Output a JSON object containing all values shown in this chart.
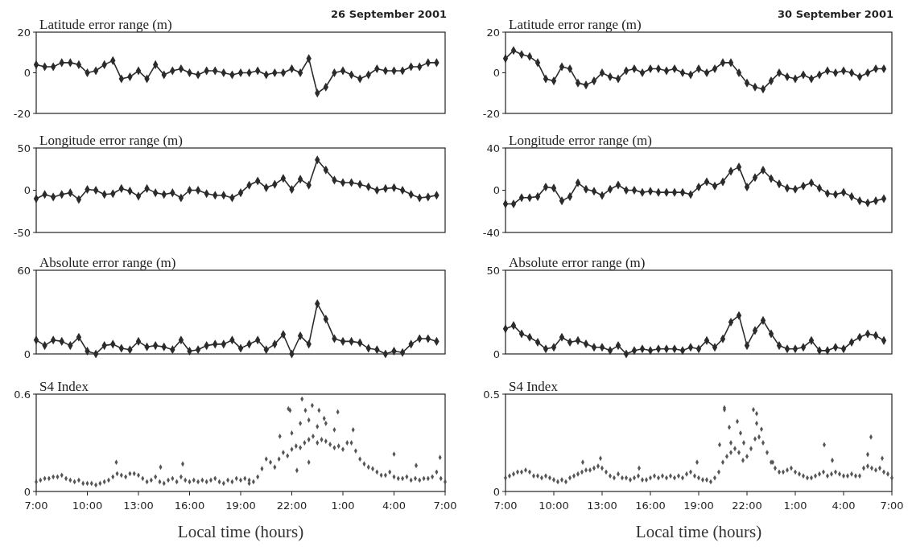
{
  "chart_data": [
    {
      "type": "line",
      "title": "Latitude error range (m)",
      "annotations": [
        "26 September 2001"
      ],
      "xlim": [
        "2001-09-26T07:00",
        "2001-09-27T07:00"
      ],
      "ylim": [
        -20,
        20
      ],
      "yticks": [
        -20,
        0,
        20
      ],
      "tick_labels": "y",
      "marker": "diamond",
      "line_style": "solid",
      "grid": false,
      "series": [
        {
          "color": "#2b2b2b",
          "x": [
            "2001-09-26T07:00",
            "2001-09-26T07:30",
            "2001-09-26T08:00",
            "2001-09-26T08:30",
            "2001-09-26T09:00",
            "2001-09-26T09:30",
            "2001-09-26T10:00",
            "2001-09-26T10:30",
            "2001-09-26T11:00",
            "2001-09-26T11:30",
            "2001-09-26T12:00",
            "2001-09-26T12:30",
            "2001-09-26T13:00",
            "2001-09-26T13:30",
            "2001-09-26T14:00",
            "2001-09-26T14:30",
            "2001-09-26T15:00",
            "2001-09-26T15:30",
            "2001-09-26T16:00",
            "2001-09-26T16:30",
            "2001-09-26T17:00",
            "2001-09-26T17:30",
            "2001-09-26T18:00",
            "2001-09-26T18:30",
            "2001-09-26T19:00",
            "2001-09-26T19:30",
            "2001-09-26T20:00",
            "2001-09-26T20:30",
            "2001-09-26T21:00",
            "2001-09-26T21:30",
            "2001-09-26T22:00",
            "2001-09-26T22:30",
            "2001-09-26T23:00",
            "2001-09-26T23:30",
            "2001-09-27T00:00",
            "2001-09-27T00:30",
            "2001-09-27T01:00",
            "2001-09-27T01:30",
            "2001-09-27T02:00",
            "2001-09-27T02:30",
            "2001-09-27T03:00",
            "2001-09-27T03:30",
            "2001-09-27T04:00",
            "2001-09-27T04:30",
            "2001-09-27T05:00",
            "2001-09-27T05:30",
            "2001-09-27T06:00",
            "2001-09-27T06:30"
          ],
          "values": [
            4,
            3,
            3,
            5,
            5,
            4,
            0,
            1,
            4,
            6,
            -3,
            -2,
            1,
            -3,
            4,
            -1,
            1,
            2,
            0,
            -1,
            1,
            1,
            0,
            -1,
            0,
            0,
            1,
            -1,
            0,
            0,
            2,
            0,
            7,
            -10,
            -7,
            0,
            1,
            -1,
            -3,
            -1,
            2,
            1,
            1,
            1,
            3,
            3,
            5,
            5
          ]
        }
      ]
    },
    {
      "type": "line",
      "title": "Latitude error range (m)",
      "annotations": [
        "30 September 2001"
      ],
      "xlim": [
        "2001-09-30T07:00",
        "2001-10-01T07:00"
      ],
      "ylim": [
        -20,
        20
      ],
      "yticks": [
        -20,
        0,
        20
      ],
      "tick_labels": "y",
      "marker": "diamond",
      "line_style": "solid",
      "grid": false,
      "series": [
        {
          "color": "#2b2b2b",
          "x": [
            "2001-09-30T07:00",
            "2001-09-30T07:30",
            "2001-09-30T08:00",
            "2001-09-30T08:30",
            "2001-09-30T09:00",
            "2001-09-30T09:30",
            "2001-09-30T10:00",
            "2001-09-30T10:30",
            "2001-09-30T11:00",
            "2001-09-30T11:30",
            "2001-09-30T12:00",
            "2001-09-30T12:30",
            "2001-09-30T13:00",
            "2001-09-30T13:30",
            "2001-09-30T14:00",
            "2001-09-30T14:30",
            "2001-09-30T15:00",
            "2001-09-30T15:30",
            "2001-09-30T16:00",
            "2001-09-30T16:30",
            "2001-09-30T17:00",
            "2001-09-30T17:30",
            "2001-09-30T18:00",
            "2001-09-30T18:30",
            "2001-09-30T19:00",
            "2001-09-30T19:30",
            "2001-09-30T20:00",
            "2001-09-30T20:30",
            "2001-09-30T21:00",
            "2001-09-30T21:30",
            "2001-09-30T22:00",
            "2001-09-30T22:30",
            "2001-09-30T23:00",
            "2001-09-30T23:30",
            "2001-10-01T00:00",
            "2001-10-01T00:30",
            "2001-10-01T01:00",
            "2001-10-01T01:30",
            "2001-10-01T02:00",
            "2001-10-01T02:30",
            "2001-10-01T03:00",
            "2001-10-01T03:30",
            "2001-10-01T04:00",
            "2001-10-01T04:30",
            "2001-10-01T05:00",
            "2001-10-01T05:30",
            "2001-10-01T06:00",
            "2001-10-01T06:30"
          ],
          "values": [
            7,
            11,
            9,
            8,
            5,
            -3,
            -4,
            3,
            2,
            -5,
            -6,
            -4,
            0,
            -2,
            -3,
            1,
            2,
            0,
            2,
            2,
            1,
            2,
            0,
            -1,
            2,
            0,
            2,
            5,
            5,
            0,
            -5,
            -7,
            -8,
            -4,
            0,
            -2,
            -3,
            -1,
            -3,
            -1,
            1,
            0,
            1,
            0,
            -2,
            0,
            2,
            2
          ]
        }
      ]
    },
    {
      "type": "line",
      "title": "Longitude error range (m)",
      "xlim": [
        "2001-09-26T07:00",
        "2001-09-27T07:00"
      ],
      "ylim": [
        -50,
        50
      ],
      "yticks": [
        -50,
        0,
        50
      ],
      "tick_labels": "y",
      "marker": "diamond",
      "line_style": "solid",
      "grid": false,
      "series": [
        {
          "color": "#2b2b2b",
          "x": [
            "2001-09-26T07:00",
            "2001-09-26T07:30",
            "2001-09-26T08:00",
            "2001-09-26T08:30",
            "2001-09-26T09:00",
            "2001-09-26T09:30",
            "2001-09-26T10:00",
            "2001-09-26T10:30",
            "2001-09-26T11:00",
            "2001-09-26T11:30",
            "2001-09-26T12:00",
            "2001-09-26T12:30",
            "2001-09-26T13:00",
            "2001-09-26T13:30",
            "2001-09-26T14:00",
            "2001-09-26T14:30",
            "2001-09-26T15:00",
            "2001-09-26T15:30",
            "2001-09-26T16:00",
            "2001-09-26T16:30",
            "2001-09-26T17:00",
            "2001-09-26T17:30",
            "2001-09-26T18:00",
            "2001-09-26T18:30",
            "2001-09-26T19:00",
            "2001-09-26T19:30",
            "2001-09-26T20:00",
            "2001-09-26T20:30",
            "2001-09-26T21:00",
            "2001-09-26T21:30",
            "2001-09-26T22:00",
            "2001-09-26T22:30",
            "2001-09-26T23:00",
            "2001-09-26T23:30",
            "2001-09-27T00:00",
            "2001-09-27T00:30",
            "2001-09-27T01:00",
            "2001-09-27T01:30",
            "2001-09-27T02:00",
            "2001-09-27T02:30",
            "2001-09-27T03:00",
            "2001-09-27T03:30",
            "2001-09-27T04:00",
            "2001-09-27T04:30",
            "2001-09-27T05:00",
            "2001-09-27T05:30",
            "2001-09-27T06:00",
            "2001-09-27T06:30"
          ],
          "values": [
            -10,
            -5,
            -8,
            -5,
            -3,
            -11,
            1,
            0,
            -5,
            -4,
            2,
            -1,
            -7,
            2,
            -3,
            -5,
            -3,
            -9,
            0,
            0,
            -4,
            -6,
            -6,
            -9,
            -3,
            6,
            11,
            3,
            7,
            14,
            1,
            13,
            6,
            36,
            24,
            12,
            9,
            9,
            7,
            4,
            0,
            2,
            3,
            0,
            -5,
            -9,
            -8,
            -6
          ]
        }
      ]
    },
    {
      "type": "line",
      "title": "Longitude error range (m)",
      "xlim": [
        "2001-09-30T07:00",
        "2001-10-01T07:00"
      ],
      "ylim": [
        -40,
        40
      ],
      "yticks": [
        -40,
        0,
        40
      ],
      "tick_labels": "y",
      "marker": "diamond",
      "line_style": "solid",
      "grid": false,
      "series": [
        {
          "color": "#2b2b2b",
          "x": [
            "2001-09-30T07:00",
            "2001-09-30T07:30",
            "2001-09-30T08:00",
            "2001-09-30T08:30",
            "2001-09-30T09:00",
            "2001-09-30T09:30",
            "2001-09-30T10:00",
            "2001-09-30T10:30",
            "2001-09-30T11:00",
            "2001-09-30T11:30",
            "2001-09-30T12:00",
            "2001-09-30T12:30",
            "2001-09-30T13:00",
            "2001-09-30T13:30",
            "2001-09-30T14:00",
            "2001-09-30T14:30",
            "2001-09-30T15:00",
            "2001-09-30T15:30",
            "2001-09-30T16:00",
            "2001-09-30T16:30",
            "2001-09-30T17:00",
            "2001-09-30T17:30",
            "2001-09-30T18:00",
            "2001-09-30T18:30",
            "2001-09-30T19:00",
            "2001-09-30T19:30",
            "2001-09-30T20:00",
            "2001-09-30T20:30",
            "2001-09-30T21:00",
            "2001-09-30T21:30",
            "2001-09-30T22:00",
            "2001-09-30T22:30",
            "2001-09-30T23:00",
            "2001-09-30T23:30",
            "2001-10-01T00:00",
            "2001-10-01T00:30",
            "2001-10-01T01:00",
            "2001-10-01T01:30",
            "2001-10-01T02:00",
            "2001-10-01T02:30",
            "2001-10-01T03:00",
            "2001-10-01T03:30",
            "2001-10-01T04:00",
            "2001-10-01T04:30",
            "2001-10-01T05:00",
            "2001-10-01T05:30",
            "2001-10-01T06:00",
            "2001-10-01T06:30"
          ],
          "values": [
            -13,
            -13,
            -7,
            -7,
            -6,
            3,
            2,
            -10,
            -6,
            7,
            1,
            -1,
            -5,
            1,
            5,
            0,
            0,
            -2,
            -1,
            -2,
            -2,
            -2,
            -2,
            -4,
            3,
            8,
            4,
            8,
            18,
            22,
            3,
            12,
            19,
            11,
            6,
            2,
            1,
            4,
            7,
            2,
            -3,
            -4,
            -2,
            -6,
            -10,
            -12,
            -10,
            -8
          ]
        }
      ]
    },
    {
      "type": "line",
      "title": "Absolute error range (m)",
      "xlim": [
        "2001-09-26T07:00",
        "2001-09-27T07:00"
      ],
      "ylim": [
        0,
        60
      ],
      "yticks": [
        0,
        60
      ],
      "tick_labels": "y",
      "marker": "diamond",
      "line_style": "solid",
      "grid": false,
      "series": [
        {
          "color": "#2b2b2b",
          "x": [
            "2001-09-26T07:00",
            "2001-09-26T07:30",
            "2001-09-26T08:00",
            "2001-09-26T08:30",
            "2001-09-26T09:00",
            "2001-09-26T09:30",
            "2001-09-26T10:00",
            "2001-09-26T10:30",
            "2001-09-26T11:00",
            "2001-09-26T11:30",
            "2001-09-26T12:00",
            "2001-09-26T12:30",
            "2001-09-26T13:00",
            "2001-09-26T13:30",
            "2001-09-26T14:00",
            "2001-09-26T14:30",
            "2001-09-26T15:00",
            "2001-09-26T15:30",
            "2001-09-26T16:00",
            "2001-09-26T16:30",
            "2001-09-26T17:00",
            "2001-09-26T17:30",
            "2001-09-26T18:00",
            "2001-09-26T18:30",
            "2001-09-26T19:00",
            "2001-09-26T19:30",
            "2001-09-26T20:00",
            "2001-09-26T20:30",
            "2001-09-26T21:00",
            "2001-09-26T21:30",
            "2001-09-26T22:00",
            "2001-09-26T22:30",
            "2001-09-26T23:00",
            "2001-09-26T23:30",
            "2001-09-27T00:00",
            "2001-09-27T00:30",
            "2001-09-27T01:00",
            "2001-09-27T01:30",
            "2001-09-27T02:00",
            "2001-09-27T02:30",
            "2001-09-27T03:00",
            "2001-09-27T03:30",
            "2001-09-27T04:00",
            "2001-09-27T04:30",
            "2001-09-27T05:00",
            "2001-09-27T05:30",
            "2001-09-27T06:00",
            "2001-09-27T06:30"
          ],
          "values": [
            10,
            6,
            10,
            9,
            6,
            12,
            2,
            0,
            6,
            7,
            4,
            3,
            9,
            5,
            6,
            5,
            3,
            10,
            2,
            3,
            6,
            7,
            7,
            10,
            4,
            7,
            10,
            3,
            7,
            14,
            0,
            13,
            7,
            36,
            25,
            11,
            9,
            9,
            8,
            4,
            3,
            0,
            2,
            1,
            7,
            11,
            11,
            9
          ]
        }
      ]
    },
    {
      "type": "line",
      "title": "Absolute error range (m)",
      "xlim": [
        "2001-09-30T07:00",
        "2001-10-01T07:00"
      ],
      "ylim": [
        0,
        50
      ],
      "yticks": [
        0,
        50
      ],
      "tick_labels": "y",
      "marker": "diamond",
      "line_style": "solid",
      "grid": false,
      "series": [
        {
          "color": "#2b2b2b",
          "x": [
            "2001-09-30T07:00",
            "2001-09-30T07:30",
            "2001-09-30T08:00",
            "2001-09-30T08:30",
            "2001-09-30T09:00",
            "2001-09-30T09:30",
            "2001-09-30T10:00",
            "2001-09-30T10:30",
            "2001-09-30T11:00",
            "2001-09-30T11:30",
            "2001-09-30T12:00",
            "2001-09-30T12:30",
            "2001-09-30T13:00",
            "2001-09-30T13:30",
            "2001-09-30T14:00",
            "2001-09-30T14:30",
            "2001-09-30T15:00",
            "2001-09-30T15:30",
            "2001-09-30T16:00",
            "2001-09-30T16:30",
            "2001-09-30T17:00",
            "2001-09-30T17:30",
            "2001-09-30T18:00",
            "2001-09-30T18:30",
            "2001-09-30T19:00",
            "2001-09-30T19:30",
            "2001-09-30T20:00",
            "2001-09-30T20:30",
            "2001-09-30T21:00",
            "2001-09-30T21:30",
            "2001-09-30T22:00",
            "2001-09-30T22:30",
            "2001-09-30T23:00",
            "2001-09-30T23:30",
            "2001-10-01T00:00",
            "2001-10-01T00:30",
            "2001-10-01T01:00",
            "2001-10-01T01:30",
            "2001-10-01T02:00",
            "2001-10-01T02:30",
            "2001-10-01T03:00",
            "2001-10-01T03:30",
            "2001-10-01T04:00",
            "2001-10-01T04:30",
            "2001-10-01T05:00",
            "2001-10-01T05:30",
            "2001-10-01T06:00",
            "2001-10-01T06:30"
          ],
          "values": [
            15,
            17,
            12,
            10,
            7,
            3,
            4,
            10,
            7,
            8,
            6,
            4,
            4,
            2,
            5,
            0,
            2,
            3,
            2,
            3,
            3,
            3,
            2,
            4,
            3,
            8,
            4,
            9,
            19,
            23,
            5,
            14,
            20,
            12,
            5,
            3,
            3,
            4,
            8,
            2,
            2,
            4,
            3,
            7,
            10,
            12,
            11,
            8
          ]
        }
      ]
    },
    {
      "type": "scatter",
      "title": "S4 Index",
      "xlabel": "Local time (hours)",
      "xlim": [
        "2001-09-26T07:00",
        "2001-09-27T07:00"
      ],
      "xticks": [
        {
          "value": "2001-09-26T07:00",
          "label": "7:00"
        },
        {
          "value": "2001-09-26T10:00",
          "label": "10:00"
        },
        {
          "value": "2001-09-26T13:00",
          "label": "13:00"
        },
        {
          "value": "2001-09-26T16:00",
          "label": "16:00"
        },
        {
          "value": "2001-09-26T19:00",
          "label": "19:00"
        },
        {
          "value": "2001-09-26T22:00",
          "label": "22:00"
        },
        {
          "value": "2001-09-27T01:00",
          "label": "1:00"
        },
        {
          "value": "2001-09-27T04:00",
          "label": "4:00"
        },
        {
          "value": "2001-09-27T07:00",
          "label": "7:00"
        }
      ],
      "ylim": [
        0,
        0.6
      ],
      "yticks": [
        0,
        0.6
      ],
      "marker": "diamond",
      "grid": false,
      "series": [
        {
          "color": "#555555",
          "x": [
            "2001-09-26T07:00",
            "2001-09-26T07:15",
            "2001-09-26T07:30",
            "2001-09-26T07:45",
            "2001-09-26T08:00",
            "2001-09-26T08:15",
            "2001-09-26T08:30",
            "2001-09-26T08:45",
            "2001-09-26T09:00",
            "2001-09-26T09:15",
            "2001-09-26T09:30",
            "2001-09-26T09:45",
            "2001-09-26T10:00",
            "2001-09-26T10:15",
            "2001-09-26T10:30",
            "2001-09-26T10:45",
            "2001-09-26T11:00",
            "2001-09-26T11:15",
            "2001-09-26T11:30",
            "2001-09-26T11:45",
            "2001-09-26T12:00",
            "2001-09-26T12:15",
            "2001-09-26T12:30",
            "2001-09-26T12:45",
            "2001-09-26T13:00",
            "2001-09-26T13:15",
            "2001-09-26T13:30",
            "2001-09-26T13:45",
            "2001-09-26T14:00",
            "2001-09-26T14:15",
            "2001-09-26T14:30",
            "2001-09-26T14:45",
            "2001-09-26T15:00",
            "2001-09-26T15:15",
            "2001-09-26T15:30",
            "2001-09-26T15:45",
            "2001-09-26T16:00",
            "2001-09-26T16:15",
            "2001-09-26T16:30",
            "2001-09-26T16:45",
            "2001-09-26T17:00",
            "2001-09-26T17:15",
            "2001-09-26T17:30",
            "2001-09-26T17:45",
            "2001-09-26T18:00",
            "2001-09-26T18:15",
            "2001-09-26T18:30",
            "2001-09-26T18:45",
            "2001-09-26T19:00",
            "2001-09-26T19:15",
            "2001-09-26T19:30",
            "2001-09-26T19:45",
            "2001-09-26T20:00",
            "2001-09-26T20:15",
            "2001-09-26T20:30",
            "2001-09-26T20:45",
            "2001-09-26T21:00",
            "2001-09-26T21:15",
            "2001-09-26T21:30",
            "2001-09-26T21:45",
            "2001-09-26T22:00",
            "2001-09-26T22:15",
            "2001-09-26T22:30",
            "2001-09-26T22:45",
            "2001-09-26T23:00",
            "2001-09-26T23:15",
            "2001-09-26T23:30",
            "2001-09-26T23:45",
            "2001-09-27T00:00",
            "2001-09-27T00:15",
            "2001-09-27T00:30",
            "2001-09-27T00:45",
            "2001-09-27T01:00",
            "2001-09-27T01:15",
            "2001-09-27T01:30",
            "2001-09-27T01:45",
            "2001-09-27T02:00",
            "2001-09-27T02:15",
            "2001-09-27T02:30",
            "2001-09-27T02:45",
            "2001-09-27T03:00",
            "2001-09-27T03:15",
            "2001-09-27T03:30",
            "2001-09-27T03:45",
            "2001-09-27T04:00",
            "2001-09-27T04:15",
            "2001-09-27T04:30",
            "2001-09-27T04:45",
            "2001-09-27T05:00",
            "2001-09-27T05:15",
            "2001-09-27T05:30",
            "2001-09-27T05:45",
            "2001-09-27T06:00",
            "2001-09-27T06:15",
            "2001-09-27T06:30",
            "2001-09-27T06:45",
            "2001-09-27T07:00",
            "2001-09-26T11:42",
            "2001-09-26T14:18",
            "2001-09-26T15:36",
            "2001-09-26T19:30",
            "2001-09-26T21:48",
            "2001-09-26T21:54",
            "2001-09-26T22:36",
            "2001-09-26T22:48",
            "2001-09-26T23:12",
            "2001-09-26T23:36",
            "2001-09-27T00:42",
            "2001-09-26T22:30",
            "2001-09-26T23:00",
            "2001-09-26T23:54",
            "2001-09-26T22:18",
            "2001-09-26T23:00",
            "2001-09-27T00:30",
            "2001-09-27T01:36",
            "2001-09-27T04:00",
            "2001-09-27T05:18",
            "2001-09-27T06:42",
            "2001-09-26T21:18",
            "2001-09-26T22:00",
            "2001-09-26T23:30",
            "2001-09-27T00:00"
          ],
          "values": [
            0.06,
            0.07,
            0.08,
            0.08,
            0.09,
            0.09,
            0.1,
            0.08,
            0.07,
            0.06,
            0.07,
            0.05,
            0.05,
            0.05,
            0.04,
            0.05,
            0.06,
            0.07,
            0.09,
            0.11,
            0.1,
            0.09,
            0.11,
            0.11,
            0.1,
            0.08,
            0.06,
            0.07,
            0.09,
            0.06,
            0.05,
            0.07,
            0.08,
            0.06,
            0.09,
            0.07,
            0.06,
            0.07,
            0.06,
            0.07,
            0.06,
            0.07,
            0.08,
            0.06,
            0.05,
            0.07,
            0.06,
            0.08,
            0.07,
            0.08,
            0.07,
            0.06,
            0.09,
            0.14,
            0.2,
            0.18,
            0.15,
            0.2,
            0.24,
            0.22,
            0.26,
            0.28,
            0.27,
            0.3,
            0.32,
            0.34,
            0.3,
            0.32,
            0.31,
            0.29,
            0.27,
            0.28,
            0.26,
            0.3,
            0.3,
            0.25,
            0.2,
            0.17,
            0.15,
            0.14,
            0.12,
            0.1,
            0.1,
            0.12,
            0.09,
            0.08,
            0.08,
            0.09,
            0.07,
            0.08,
            0.07,
            0.08,
            0.08,
            0.09,
            0.12,
            0.08,
            0.06,
            0.18,
            0.15,
            0.17,
            0.05,
            0.51,
            0.5,
            0.57,
            0.5,
            0.53,
            0.5,
            0.49,
            0.42,
            0.44,
            0.45,
            0.13,
            0.18,
            0.38,
            0.38,
            0.23,
            0.16,
            0.21,
            0.34,
            0.36,
            0.4,
            0.42
          ]
        }
      ]
    },
    {
      "type": "scatter",
      "title": "S4 Index",
      "xlabel": "Local time (hours)",
      "xlim": [
        "2001-09-30T07:00",
        "2001-10-01T07:00"
      ],
      "xticks": [
        {
          "value": "2001-09-30T07:00",
          "label": "7:00"
        },
        {
          "value": "2001-09-30T10:00",
          "label": "10:00"
        },
        {
          "value": "2001-09-30T13:00",
          "label": "13:00"
        },
        {
          "value": "2001-09-30T16:00",
          "label": "16:00"
        },
        {
          "value": "2001-09-30T19:00",
          "label": "19:00"
        },
        {
          "value": "2001-09-30T22:00",
          "label": "22:00"
        },
        {
          "value": "2001-10-01T01:00",
          "label": "1:00"
        },
        {
          "value": "2001-10-01T04:00",
          "label": "4:00"
        },
        {
          "value": "2001-10-01T07:00",
          "label": "7:00"
        }
      ],
      "ylim": [
        0,
        0.5
      ],
      "yticks": [
        0,
        0.5
      ],
      "marker": "diamond",
      "grid": false,
      "series": [
        {
          "color": "#555555",
          "x": [
            "2001-09-30T07:00",
            "2001-09-30T07:15",
            "2001-09-30T07:30",
            "2001-09-30T07:45",
            "2001-09-30T08:00",
            "2001-09-30T08:15",
            "2001-09-30T08:30",
            "2001-09-30T08:45",
            "2001-09-30T09:00",
            "2001-09-30T09:15",
            "2001-09-30T09:30",
            "2001-09-30T09:45",
            "2001-09-30T10:00",
            "2001-09-30T10:15",
            "2001-09-30T10:30",
            "2001-09-30T10:45",
            "2001-09-30T11:00",
            "2001-09-30T11:15",
            "2001-09-30T11:30",
            "2001-09-30T11:45",
            "2001-09-30T12:00",
            "2001-09-30T12:15",
            "2001-09-30T12:30",
            "2001-09-30T12:45",
            "2001-09-30T13:00",
            "2001-09-30T13:15",
            "2001-09-30T13:30",
            "2001-09-30T13:45",
            "2001-09-30T14:00",
            "2001-09-30T14:15",
            "2001-09-30T14:30",
            "2001-09-30T14:45",
            "2001-09-30T15:00",
            "2001-09-30T15:15",
            "2001-09-30T15:30",
            "2001-09-30T15:45",
            "2001-09-30T16:00",
            "2001-09-30T16:15",
            "2001-09-30T16:30",
            "2001-09-30T16:45",
            "2001-09-30T17:00",
            "2001-09-30T17:15",
            "2001-09-30T17:30",
            "2001-09-30T17:45",
            "2001-09-30T18:00",
            "2001-09-30T18:15",
            "2001-09-30T18:30",
            "2001-09-30T18:45",
            "2001-09-30T19:00",
            "2001-09-30T19:15",
            "2001-09-30T19:30",
            "2001-09-30T19:45",
            "2001-09-30T20:00",
            "2001-09-30T20:15",
            "2001-09-30T20:30",
            "2001-09-30T20:45",
            "2001-09-30T21:00",
            "2001-09-30T21:15",
            "2001-09-30T21:30",
            "2001-09-30T21:45",
            "2001-09-30T22:00",
            "2001-09-30T22:15",
            "2001-09-30T22:30",
            "2001-09-30T22:45",
            "2001-09-30T23:00",
            "2001-09-30T23:15",
            "2001-09-30T23:30",
            "2001-09-30T23:45",
            "2001-10-01T00:00",
            "2001-10-01T00:15",
            "2001-10-01T00:30",
            "2001-10-01T00:45",
            "2001-10-01T01:00",
            "2001-10-01T01:15",
            "2001-10-01T01:30",
            "2001-10-01T01:45",
            "2001-10-01T02:00",
            "2001-10-01T02:15",
            "2001-10-01T02:30",
            "2001-10-01T02:45",
            "2001-10-01T03:00",
            "2001-10-01T03:15",
            "2001-10-01T03:30",
            "2001-10-01T03:45",
            "2001-10-01T04:00",
            "2001-10-01T04:15",
            "2001-10-01T04:30",
            "2001-10-01T04:45",
            "2001-10-01T05:00",
            "2001-10-01T05:15",
            "2001-10-01T05:30",
            "2001-10-01T05:45",
            "2001-10-01T06:00",
            "2001-10-01T06:15",
            "2001-10-01T06:30",
            "2001-10-01T06:45",
            "2001-10-01T07:00",
            "2001-09-30T20:36",
            "2001-09-30T20:36",
            "2001-09-30T20:54",
            "2001-09-30T21:24",
            "2001-09-30T21:36",
            "2001-09-30T22:24",
            "2001-09-30T22:36",
            "2001-09-30T22:36",
            "2001-09-30T21:00",
            "2001-09-30T22:54",
            "2001-09-30T21:48",
            "2001-09-30T20:18",
            "2001-09-30T18:54",
            "2001-10-01T02:48",
            "2001-10-01T05:42",
            "2001-10-01T05:30",
            "2001-10-01T06:24",
            "2001-09-30T11:48",
            "2001-09-30T12:54",
            "2001-09-30T15:18",
            "2001-09-30T23:36",
            "2001-10-01T03:18"
          ],
          "values": [
            0.07,
            0.08,
            0.09,
            0.1,
            0.1,
            0.11,
            0.1,
            0.08,
            0.08,
            0.07,
            0.08,
            0.07,
            0.06,
            0.05,
            0.06,
            0.05,
            0.07,
            0.08,
            0.09,
            0.1,
            0.11,
            0.11,
            0.12,
            0.13,
            0.12,
            0.1,
            0.08,
            0.07,
            0.09,
            0.07,
            0.07,
            0.06,
            0.07,
            0.08,
            0.06,
            0.06,
            0.07,
            0.08,
            0.07,
            0.08,
            0.07,
            0.08,
            0.07,
            0.08,
            0.07,
            0.09,
            0.1,
            0.08,
            0.07,
            0.06,
            0.06,
            0.05,
            0.07,
            0.1,
            0.15,
            0.18,
            0.2,
            0.22,
            0.2,
            0.16,
            0.18,
            0.22,
            0.27,
            0.28,
            0.25,
            0.2,
            0.15,
            0.12,
            0.1,
            0.1,
            0.11,
            0.12,
            0.1,
            0.09,
            0.08,
            0.07,
            0.07,
            0.08,
            0.09,
            0.1,
            0.08,
            0.09,
            0.1,
            0.09,
            0.08,
            0.08,
            0.09,
            0.08,
            0.08,
            0.12,
            0.13,
            0.12,
            0.11,
            0.12,
            0.1,
            0.09,
            0.07,
            0.43,
            0.42,
            0.33,
            0.36,
            0.3,
            0.42,
            0.4,
            0.35,
            0.25,
            0.32,
            0.25,
            0.24,
            0.15,
            0.24,
            0.28,
            0.19,
            0.17,
            0.15,
            0.17,
            0.12,
            0.15,
            0.16
          ]
        }
      ]
    }
  ]
}
